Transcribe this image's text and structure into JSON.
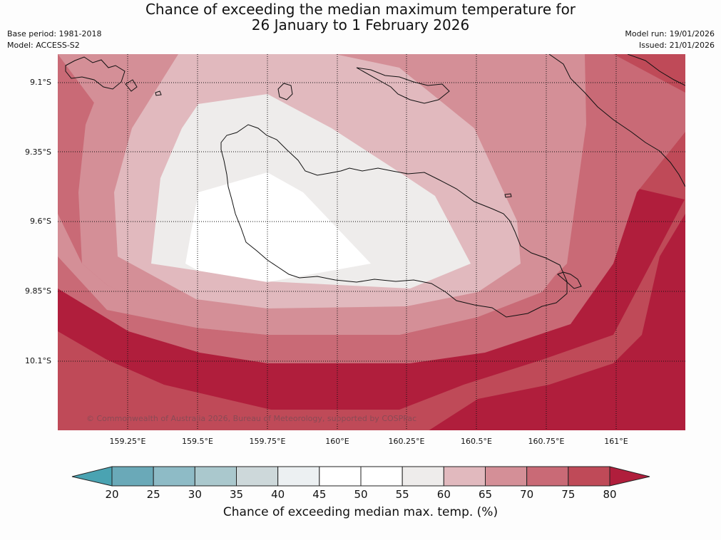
{
  "header": {
    "title_line1": "Chance of exceeding the median maximum temperature for",
    "title_line2": "26 January to 1 February 2026",
    "base_period": "Base period: 1981-2018",
    "model": "Model: ACCESS-S2",
    "model_run": "Model run: 19/01/2026",
    "issued": "Issued: 21/01/2026"
  },
  "map": {
    "latitude_labels": [
      "9.1°S",
      "9.35°S",
      "9.6°S",
      "9.85°S",
      "10.1°S"
    ],
    "longitude_labels": [
      "159.25°E",
      "159.5°E",
      "159.75°E",
      "160°E",
      "160.25°E",
      "160.5°E",
      "160.75°E",
      "161°E"
    ],
    "credit": "© Commonwealth of Australia 2026, Bureau of Meteorology, supported by COSPPac"
  },
  "colorbar": {
    "ticks": [
      "20",
      "25",
      "30",
      "35",
      "40",
      "45",
      "50",
      "55",
      "60",
      "65",
      "70",
      "75",
      "80"
    ],
    "bins": [
      {
        "range": "20-25",
        "color": "#6aa9b8"
      },
      {
        "range": "25-30",
        "color": "#8ebbc6"
      },
      {
        "range": "30-35",
        "color": "#aac8cd"
      },
      {
        "range": "35-40",
        "color": "#cdd8da"
      },
      {
        "range": "40-45",
        "color": "#ecf0f2"
      },
      {
        "range": "45-50",
        "color": "#ffffff"
      },
      {
        "range": "50-55",
        "color": "#ffffff"
      },
      {
        "range": "55-60",
        "color": "#eeeceb"
      },
      {
        "range": "60-65",
        "color": "#e1b9be"
      },
      {
        "range": "65-70",
        "color": "#d48f97"
      },
      {
        "range": "70-75",
        "color": "#c96a76"
      },
      {
        "range": "75-80",
        "color": "#bf4a58"
      }
    ],
    "under_color": "#4aa3b2",
    "over_color": "#b01e3c",
    "title": "Chance of exceeding median max. temp. (%)"
  }
}
